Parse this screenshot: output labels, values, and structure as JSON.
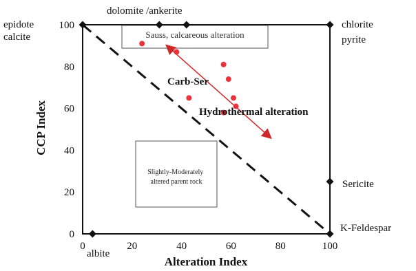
{
  "chart_data": {
    "type": "scatter",
    "xlabel": "Alteration Index",
    "ylabel": "CCP Index",
    "xlim": [
      0,
      100
    ],
    "ylim": [
      0,
      100
    ],
    "x_ticks": [
      "0",
      "20",
      "40",
      "60",
      "80",
      "100"
    ],
    "y_ticks": [
      "0",
      "20",
      "40",
      "60",
      "80",
      "100"
    ],
    "x_tick_values": [
      0,
      20,
      40,
      60,
      80,
      100
    ],
    "y_tick_values": [
      0,
      20,
      40,
      60,
      80,
      100
    ],
    "grid": false,
    "points": [
      {
        "x": 24,
        "y": 91
      },
      {
        "x": 38,
        "y": 87
      },
      {
        "x": 43,
        "y": 65
      },
      {
        "x": 57,
        "y": 81
      },
      {
        "x": 59,
        "y": 74
      },
      {
        "x": 61,
        "y": 65
      },
      {
        "x": 62,
        "y": 61
      },
      {
        "x": 57,
        "y": 58
      }
    ],
    "point_color": "#e8323c",
    "reference_points": [
      {
        "x": 0,
        "y": 100,
        "label": "epidote\ncalcite"
      },
      {
        "x": 31,
        "y": 100,
        "label": "dolomite /ankerite"
      },
      {
        "x": 42,
        "y": 100,
        "label": ""
      },
      {
        "x": 100,
        "y": 100,
        "label": "chlorite\npyrite"
      },
      {
        "x": 4,
        "y": 0,
        "label": "albite"
      },
      {
        "x": 100,
        "y": 25,
        "label": "Sericite"
      },
      {
        "x": 100,
        "y": 0,
        "label": "K-Feldespar"
      }
    ],
    "dividing_line": {
      "x": [
        0,
        100
      ],
      "y": [
        100,
        0
      ],
      "style": "dashed"
    },
    "annotations": {
      "saussurite_box": "Sauss, calcareous alteration",
      "carb_ser": "Carb-Ser",
      "hydrothermal": "Hydrothermal alteration",
      "parent_box": "Slightly-Moderately altered parent rock"
    },
    "arrow": {
      "from": {
        "x": 35,
        "y": 89
      },
      "to": {
        "x": 75,
        "y": 47
      },
      "color": "#d02828"
    }
  }
}
